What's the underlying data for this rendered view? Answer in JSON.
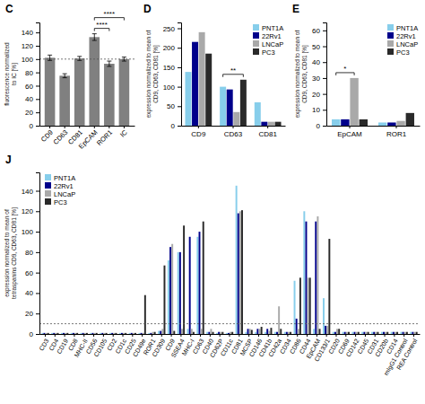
{
  "chart_data": [
    {
      "type": "bar",
      "title": "C",
      "categories": [
        "CD9",
        "CD63",
        "CD81",
        "EpCAM",
        "ROR1",
        "IC"
      ],
      "values": [
        102,
        75,
        101,
        133,
        93,
        100
      ],
      "errors": [
        4,
        3,
        3,
        5,
        4,
        3
      ],
      "color": "#808080",
      "ylabel": "fluorescence normalized\nto IC [%]",
      "ylim": [
        0,
        155
      ],
      "yticks": [
        0,
        20,
        40,
        60,
        80,
        100,
        120,
        140
      ],
      "hline": 100,
      "annotations": [
        {
          "text": "****",
          "from": "EpCAM",
          "to": "IC"
        },
        {
          "text": "****",
          "from": "EpCAM",
          "to": "ROR1"
        }
      ]
    },
    {
      "type": "bar",
      "title": "D",
      "categories": [
        "CD9",
        "CD63",
        "CD81"
      ],
      "series": [
        {
          "name": "PNT1A",
          "color": "#87CEEB",
          "values": [
            138,
            100,
            60
          ]
        },
        {
          "name": "22Rv1",
          "color": "#00008B",
          "values": [
            215,
            93,
            10
          ]
        },
        {
          "name": "LNCaP",
          "color": "#A9A9A9",
          "values": [
            240,
            35,
            10
          ]
        },
        {
          "name": "PC3",
          "color": "#2a2a2a",
          "values": [
            185,
            118,
            10
          ]
        }
      ],
      "ylabel": "expression normalized to mean of\nCD9, CD63, CD81 [%]",
      "ylim": [
        0,
        265
      ],
      "yticks": [
        0,
        50,
        100,
        150,
        200,
        250
      ],
      "legend": "upper right",
      "annotations": [
        {
          "text": "**",
          "category": "CD63"
        }
      ]
    },
    {
      "type": "bar",
      "title": "E",
      "categories": [
        "EpCAM",
        "ROR1"
      ],
      "series": [
        {
          "name": "PNT1A",
          "color": "#87CEEB",
          "values": [
            4,
            2
          ]
        },
        {
          "name": "22Rv1",
          "color": "#00008B",
          "values": [
            4,
            2
          ]
        },
        {
          "name": "LNCaP",
          "color": "#A9A9A9",
          "values": [
            30,
            3
          ]
        },
        {
          "name": "PC3",
          "color": "#2a2a2a",
          "values": [
            4,
            8
          ]
        }
      ],
      "ylabel": "expression normalized to mean of\nCD9, CD63, CD81 [%]",
      "ylim": [
        0,
        65
      ],
      "yticks": [
        0,
        10,
        20,
        30,
        40,
        50,
        60
      ],
      "legend": "upper right",
      "annotations": [
        {
          "text": "*",
          "category": "EpCAM",
          "from": "PNT1A",
          "to": "LNCaP"
        }
      ]
    },
    {
      "type": "bar",
      "title": "J",
      "categories": [
        "CD3",
        "CD4",
        "CD19",
        "CD8",
        "MHC-II",
        "CD56",
        "CD105",
        "CD2",
        "CD1c",
        "CD25",
        "CD49e",
        "ROR1",
        "CD309",
        "CD9",
        "SSEA4",
        "MHC-I",
        "CD63",
        "CD40",
        "CD62P",
        "CD11c",
        "CD81",
        "MCSP",
        "CD146",
        "CD41b",
        "CD42a",
        "CD34",
        "CD86",
        "CD44",
        "EpCAM",
        "CD133/1",
        "CD20",
        "CD69",
        "CD142",
        "CD45",
        "CD31",
        "CD20b",
        "CD14",
        "mIgG1 Control",
        "REA Control"
      ],
      "series": [
        {
          "name": "PNT1A",
          "color": "#87CEEB",
          "values": [
            1,
            1,
            1,
            1,
            1,
            1,
            1,
            1,
            1,
            1,
            1,
            1,
            3,
            72,
            80,
            5,
            95,
            2,
            1,
            1,
            145,
            2,
            2,
            2,
            2,
            2,
            52,
            120,
            5,
            35,
            2,
            2,
            2,
            2,
            2,
            2,
            2,
            2,
            2
          ]
        },
        {
          "name": "22Rv1",
          "color": "#00008B",
          "values": [
            1,
            1,
            1,
            1,
            1,
            1,
            1,
            1,
            1,
            1,
            1,
            1,
            3,
            85,
            80,
            95,
            100,
            2,
            2,
            1,
            118,
            5,
            5,
            5,
            2,
            2,
            15,
            110,
            110,
            8,
            2,
            2,
            2,
            2,
            2,
            2,
            2,
            2,
            2
          ]
        },
        {
          "name": "LNCaP",
          "color": "#A9A9A9",
          "values": [
            1,
            1,
            1,
            1,
            1,
            1,
            1,
            1,
            1,
            1,
            1,
            2,
            5,
            88,
            5,
            5,
            5,
            5,
            2,
            2,
            120,
            5,
            5,
            3,
            27,
            2,
            5,
            55,
            115,
            8,
            5,
            2,
            2,
            2,
            2,
            2,
            2,
            2,
            2
          ]
        },
        {
          "name": "PC3",
          "color": "#2a2a2a",
          "values": [
            1,
            1,
            1,
            1,
            1,
            1,
            1,
            1,
            1,
            1,
            38,
            2,
            67,
            3,
            106,
            2,
            110,
            2,
            2,
            2,
            121,
            4,
            7,
            6,
            5,
            2,
            55,
            55,
            5,
            93,
            5,
            2,
            2,
            2,
            2,
            2,
            2,
            2,
            2
          ]
        }
      ],
      "ylabel": "expression normalized to mean of\ntetraspanins CD9, CD63, CD81 [%]",
      "ylim": [
        0,
        158
      ],
      "yticks": [
        0,
        20,
        40,
        60,
        80,
        100,
        120,
        140
      ],
      "hline": 10,
      "legend": "upper left"
    }
  ]
}
